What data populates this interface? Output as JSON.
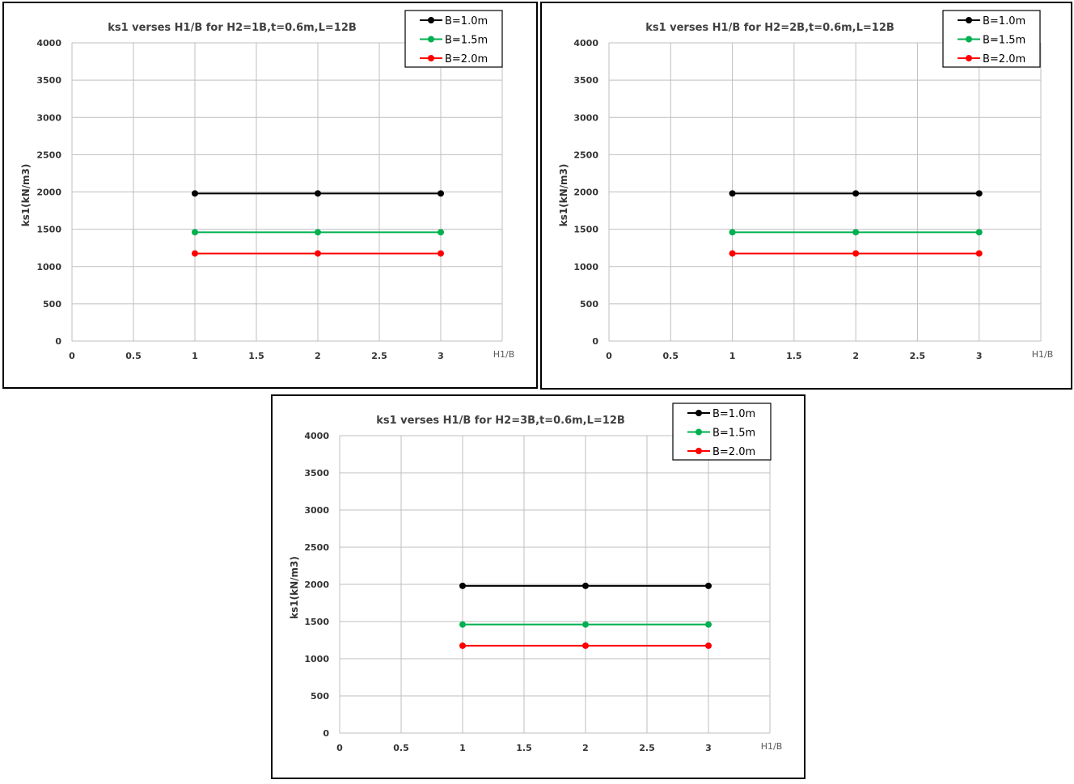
{
  "chart_data": [
    {
      "type": "line",
      "title": "ks1 verses H1/B for H2=1B,t=0.6m,L=12B",
      "xlabel": "H1/B",
      "ylabel": "ks1(kN/m3)",
      "xlim": [
        0,
        3.5
      ],
      "ylim": [
        0,
        4000
      ],
      "xticks": [
        "0",
        "0.5",
        "1",
        "1.5",
        "2",
        "2.5",
        "3"
      ],
      "yticks": [
        "0",
        "500",
        "1000",
        "1500",
        "2000",
        "2500",
        "3000",
        "3500",
        "4000"
      ],
      "grid": true,
      "legend_position": "top-right",
      "series": [
        {
          "name": "B=1.0m",
          "color": "#000000",
          "x": [
            1,
            2,
            3
          ],
          "y": [
            1980,
            1980,
            1980
          ]
        },
        {
          "name": "B=1.5m",
          "color": "#00b050",
          "x": [
            1,
            2,
            3
          ],
          "y": [
            1460,
            1460,
            1460
          ]
        },
        {
          "name": "B=2.0m",
          "color": "#ff0000",
          "x": [
            1,
            2,
            3
          ],
          "y": [
            1175,
            1175,
            1175
          ]
        }
      ]
    },
    {
      "type": "line",
      "title": "ks1 verses H1/B for H2=2B,t=0.6m,L=12B",
      "xlabel": "H1/B",
      "ylabel": "ks1(kN/m3)",
      "xlim": [
        0,
        3.5
      ],
      "ylim": [
        0,
        4000
      ],
      "xticks": [
        "0",
        "0.5",
        "1",
        "1.5",
        "2",
        "2.5",
        "3"
      ],
      "yticks": [
        "0",
        "500",
        "1000",
        "1500",
        "2000",
        "2500",
        "3000",
        "3500",
        "4000"
      ],
      "grid": true,
      "legend_position": "top-right",
      "series": [
        {
          "name": "B=1.0m",
          "color": "#000000",
          "x": [
            1,
            2,
            3
          ],
          "y": [
            1980,
            1980,
            1980
          ]
        },
        {
          "name": "B=1.5m",
          "color": "#00b050",
          "x": [
            1,
            2,
            3
          ],
          "y": [
            1460,
            1460,
            1460
          ]
        },
        {
          "name": "B=2.0m",
          "color": "#ff0000",
          "x": [
            1,
            2,
            3
          ],
          "y": [
            1175,
            1175,
            1175
          ]
        }
      ]
    },
    {
      "type": "line",
      "title": "ks1 verses H1/B for H2=3B,t=0.6m,L=12B",
      "xlabel": "H1/B",
      "ylabel": "ks1(kN/m3)",
      "xlim": [
        0,
        3.5
      ],
      "ylim": [
        0,
        4000
      ],
      "xticks": [
        "0",
        "0.5",
        "1",
        "1.5",
        "2",
        "2.5",
        "3"
      ],
      "yticks": [
        "0",
        "500",
        "1000",
        "1500",
        "2000",
        "2500",
        "3000",
        "3500",
        "4000"
      ],
      "grid": true,
      "legend_position": "top-right",
      "series": [
        {
          "name": "B=1.0m",
          "color": "#000000",
          "x": [
            1,
            2,
            3
          ],
          "y": [
            1980,
            1980,
            1980
          ]
        },
        {
          "name": "B=1.5m",
          "color": "#00b050",
          "x": [
            1,
            2,
            3
          ],
          "y": [
            1460,
            1460,
            1460
          ]
        },
        {
          "name": "B=2.0m",
          "color": "#ff0000",
          "x": [
            1,
            2,
            3
          ],
          "y": [
            1175,
            1175,
            1175
          ]
        }
      ]
    }
  ]
}
